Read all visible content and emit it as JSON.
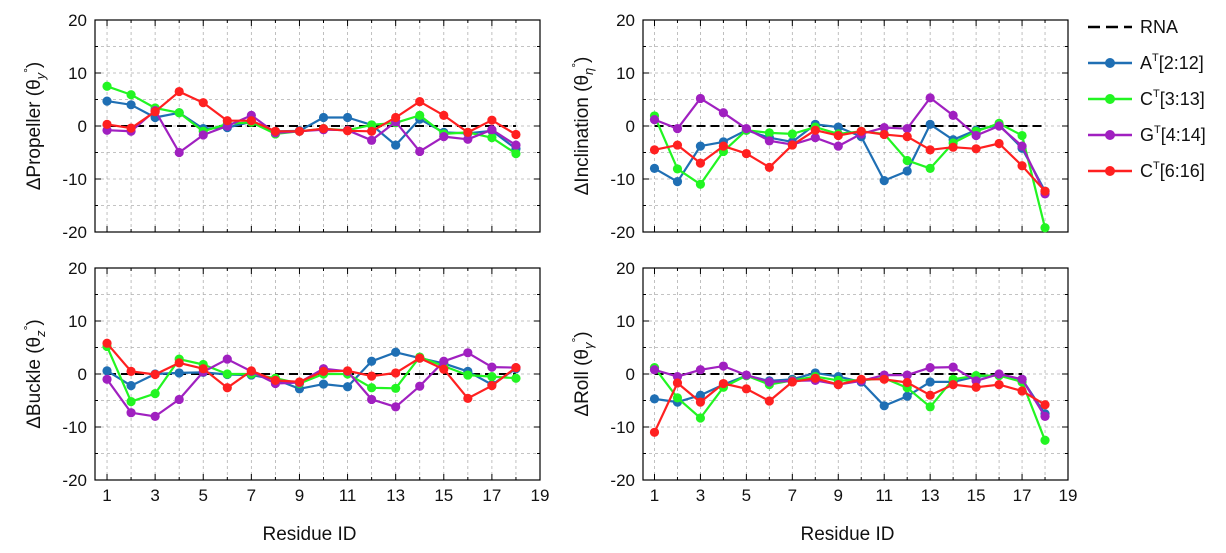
{
  "colors": {
    "reference": "#000000",
    "A_2_12": "#1f6fb4",
    "C_3_13": "#22f522",
    "G_4_14": "#a020c0",
    "C_6_16": "#ff2020"
  },
  "legend": {
    "entries": [
      {
        "key": "rna",
        "name": "RNA",
        "color": "#000000",
        "style": "dashed"
      },
      {
        "key": "a212",
        "base": "A",
        "sup": "T",
        "rest": "[2:12]",
        "color": "#1f6fb4"
      },
      {
        "key": "c313",
        "base": "C",
        "sup": "T",
        "rest": "[3:13]",
        "color": "#22f522"
      },
      {
        "key": "g414",
        "base": "G",
        "sup": "T",
        "rest": "[4:14]",
        "color": "#a020c0"
      },
      {
        "key": "c616",
        "base": "C",
        "sup": "T",
        "rest": "[6:16]",
        "color": "#ff2020"
      }
    ]
  },
  "chart_data": [
    {
      "type": "line",
      "panel": "propeller",
      "ylabel_main": "ΔPropeller (θ",
      "ylabel_sub": "y",
      "ylabel_sup": "°",
      "ylabel_close": ")",
      "xlabel": "",
      "ylim": [
        -20,
        20
      ],
      "xlim": [
        0.5,
        19
      ],
      "yticks": [
        -20,
        -10,
        0,
        10,
        20
      ],
      "xticks": [
        1,
        3,
        5,
        7,
        9,
        11,
        13,
        15,
        17,
        19
      ],
      "show_xtick_labels": false,
      "grid": true,
      "reference": {
        "name": "RNA",
        "x": [
          1,
          18
        ],
        "y": [
          0,
          0
        ]
      },
      "x": [
        1,
        2,
        3,
        4,
        5,
        6,
        7,
        8,
        9,
        10,
        11,
        12,
        13,
        14,
        15,
        16,
        17,
        18
      ],
      "series": [
        {
          "name": "A[2:12]",
          "color": "#1f6fb4",
          "values": [
            4.7,
            4.0,
            1.6,
            2.5,
            -0.5,
            -0.3,
            0.8,
            -1.0,
            -0.9,
            1.6,
            1.6,
            0.2,
            -3.6,
            1.3,
            -1.2,
            -1.4,
            -0.9,
            -4.3
          ]
        },
        {
          "name": "C[3:13]",
          "color": "#22f522",
          "values": [
            7.5,
            5.9,
            3.4,
            2.5,
            -1.0,
            0.4,
            0.7,
            -1.5,
            -1.0,
            -0.5,
            -0.8,
            0.2,
            0.6,
            2.0,
            -1.5,
            -1.2,
            -2.2,
            -5.2
          ]
        },
        {
          "name": "G[4:14]",
          "color": "#a020c0",
          "values": [
            -0.8,
            -1.0,
            2.9,
            -5.0,
            -1.7,
            0.0,
            2.0,
            -1.3,
            -1.0,
            -0.7,
            -0.8,
            -2.7,
            0.8,
            -4.8,
            -2.0,
            -2.5,
            -0.7,
            -3.6
          ]
        },
        {
          "name": "C[6:16]",
          "color": "#ff2020",
          "values": [
            0.3,
            -0.4,
            2.7,
            6.5,
            4.4,
            1.0,
            1.0,
            -1.0,
            -1.0,
            -0.5,
            -0.9,
            -1.0,
            1.6,
            4.6,
            2.0,
            -1.2,
            1.1,
            -1.6
          ]
        }
      ]
    },
    {
      "type": "line",
      "panel": "inclination",
      "ylabel_main": "ΔInclination (θ",
      "ylabel_sub": "η",
      "ylabel_sup": "°",
      "ylabel_close": ")",
      "xlabel": "",
      "ylim": [
        -20,
        20
      ],
      "xlim": [
        0.5,
        19
      ],
      "yticks": [
        -20,
        -10,
        0,
        10,
        20
      ],
      "xticks": [
        1,
        3,
        5,
        7,
        9,
        11,
        13,
        15,
        17,
        19
      ],
      "show_xtick_labels": false,
      "grid": true,
      "reference": {
        "name": "RNA",
        "x": [
          1,
          18
        ],
        "y": [
          0,
          0
        ]
      },
      "x": [
        1,
        2,
        3,
        4,
        5,
        6,
        7,
        8,
        9,
        10,
        11,
        12,
        13,
        14,
        15,
        16,
        17,
        18
      ],
      "series": [
        {
          "name": "A[2:12]",
          "color": "#1f6fb4",
          "values": [
            -8.0,
            -10.5,
            -3.8,
            -3.0,
            -0.8,
            -2.2,
            -3.0,
            0.3,
            -0.2,
            -2.0,
            -10.3,
            -8.5,
            0.3,
            -2.6,
            -0.8,
            0.2,
            -4.2,
            -12.3
          ]
        },
        {
          "name": "C[3:13]",
          "color": "#22f522",
          "values": [
            1.9,
            -8.1,
            -11.0,
            -4.8,
            -0.8,
            -1.3,
            -1.5,
            -0.2,
            -1.5,
            -1.0,
            -1.5,
            -6.5,
            -8.0,
            -3.2,
            -1.0,
            0.5,
            -1.8,
            -19.2
          ]
        },
        {
          "name": "G[4:14]",
          "color": "#a020c0",
          "values": [
            1.2,
            -0.5,
            5.2,
            2.5,
            -0.5,
            -2.8,
            -3.5,
            -2.2,
            -3.8,
            -1.5,
            -0.3,
            -0.5,
            5.3,
            2.0,
            -1.8,
            0.0,
            -3.8,
            -12.8
          ]
        },
        {
          "name": "C[6:16]",
          "color": "#ff2020",
          "values": [
            -4.5,
            -3.6,
            -7.0,
            -3.8,
            -5.2,
            -7.8,
            -3.6,
            -0.8,
            -1.8,
            -1.0,
            -1.6,
            -2.0,
            -4.5,
            -4.0,
            -4.3,
            -3.3,
            -7.5,
            -12.3
          ]
        }
      ]
    },
    {
      "type": "line",
      "panel": "buckle",
      "ylabel_main": "ΔBuckle (θ",
      "ylabel_sub": "z",
      "ylabel_sup": "°",
      "ylabel_close": ")",
      "xlabel": "Residue ID",
      "ylim": [
        -20,
        20
      ],
      "xlim": [
        0.5,
        19
      ],
      "yticks": [
        -20,
        -10,
        0,
        10,
        20
      ],
      "xticks": [
        1,
        3,
        5,
        7,
        9,
        11,
        13,
        15,
        17,
        19
      ],
      "show_xtick_labels": true,
      "grid": true,
      "reference": {
        "name": "RNA",
        "x": [
          1,
          18
        ],
        "y": [
          0,
          0
        ]
      },
      "x": [
        1,
        2,
        3,
        4,
        5,
        6,
        7,
        8,
        9,
        10,
        11,
        12,
        13,
        14,
        15,
        16,
        17,
        18
      ],
      "series": [
        {
          "name": "A[2:12]",
          "color": "#1f6fb4",
          "values": [
            0.6,
            -2.2,
            0.0,
            0.2,
            0.3,
            -0.1,
            -0.2,
            -1.0,
            -2.8,
            -1.9,
            -2.4,
            2.4,
            4.1,
            3.0,
            2.0,
            0.5,
            -2.0,
            1.0
          ]
        },
        {
          "name": "C[3:13]",
          "color": "#22f522",
          "values": [
            5.2,
            -5.2,
            -3.7,
            2.8,
            1.8,
            0.0,
            0.0,
            -0.8,
            -1.8,
            0.0,
            0.0,
            -2.6,
            -2.7,
            3.2,
            1.5,
            -0.2,
            -0.5,
            -0.8
          ]
        },
        {
          "name": "G[4:14]",
          "color": "#a020c0",
          "values": [
            -1.0,
            -7.3,
            -8.0,
            -4.8,
            0.4,
            2.8,
            0.5,
            -1.8,
            -1.6,
            1.0,
            0.5,
            -4.8,
            -6.2,
            -2.3,
            2.4,
            4.0,
            1.3,
            1.2
          ]
        },
        {
          "name": "C[6:16]",
          "color": "#ff2020",
          "values": [
            5.8,
            0.5,
            -0.1,
            2.1,
            1.0,
            -2.6,
            0.6,
            -1.2,
            -1.5,
            0.5,
            0.6,
            -0.4,
            0.2,
            3.0,
            0.9,
            -4.6,
            -2.2,
            1.2
          ]
        }
      ]
    },
    {
      "type": "line",
      "panel": "roll",
      "ylabel_main": "ΔRoll (θ",
      "ylabel_sub": "γ",
      "ylabel_sup": "°",
      "ylabel_close": ")",
      "xlabel": "Residue ID",
      "ylim": [
        -20,
        20
      ],
      "xlim": [
        0.5,
        19
      ],
      "yticks": [
        -20,
        -10,
        0,
        10,
        20
      ],
      "xticks": [
        1,
        3,
        5,
        7,
        9,
        11,
        13,
        15,
        17,
        19
      ],
      "show_xtick_labels": true,
      "grid": true,
      "reference": {
        "name": "RNA",
        "x": [
          1,
          17
        ],
        "y": [
          0,
          0
        ]
      },
      "x": [
        1,
        2,
        3,
        4,
        5,
        6,
        7,
        8,
        9,
        10,
        11,
        12,
        13,
        14,
        15,
        16,
        17,
        18
      ],
      "series": [
        {
          "name": "A[2:12]",
          "color": "#1f6fb4",
          "values": [
            -4.7,
            -5.3,
            -4.0,
            -2.0,
            -0.3,
            -1.3,
            -1.0,
            0.2,
            -0.5,
            -1.5,
            -6.0,
            -4.2,
            -1.5,
            -1.5,
            -0.5,
            -0.2,
            -1.0,
            -7.5
          ]
        },
        {
          "name": "C[3:13]",
          "color": "#22f522",
          "values": [
            1.2,
            -4.5,
            -8.3,
            -2.5,
            -0.3,
            -2.0,
            -1.2,
            -0.5,
            -1.2,
            -1.2,
            -0.8,
            -2.6,
            -6.2,
            -1.0,
            -0.3,
            -0.3,
            -1.5,
            -12.5
          ]
        },
        {
          "name": "G[4:14]",
          "color": "#a020c0",
          "values": [
            0.8,
            -0.5,
            0.8,
            1.5,
            -0.2,
            -1.5,
            -1.3,
            -1.2,
            -2.0,
            -1.3,
            -0.2,
            -0.2,
            1.2,
            1.3,
            -1.3,
            0.0,
            -1.0,
            -8.0
          ]
        },
        {
          "name": "C[6:16]",
          "color": "#ff2020",
          "values": [
            -11.0,
            -1.7,
            -5.3,
            -1.8,
            -2.8,
            -5.1,
            -1.5,
            -0.8,
            -2.0,
            -1.0,
            -1.0,
            -1.6,
            -4.0,
            -2.0,
            -2.5,
            -2.0,
            -3.2,
            -5.8
          ]
        }
      ]
    }
  ]
}
